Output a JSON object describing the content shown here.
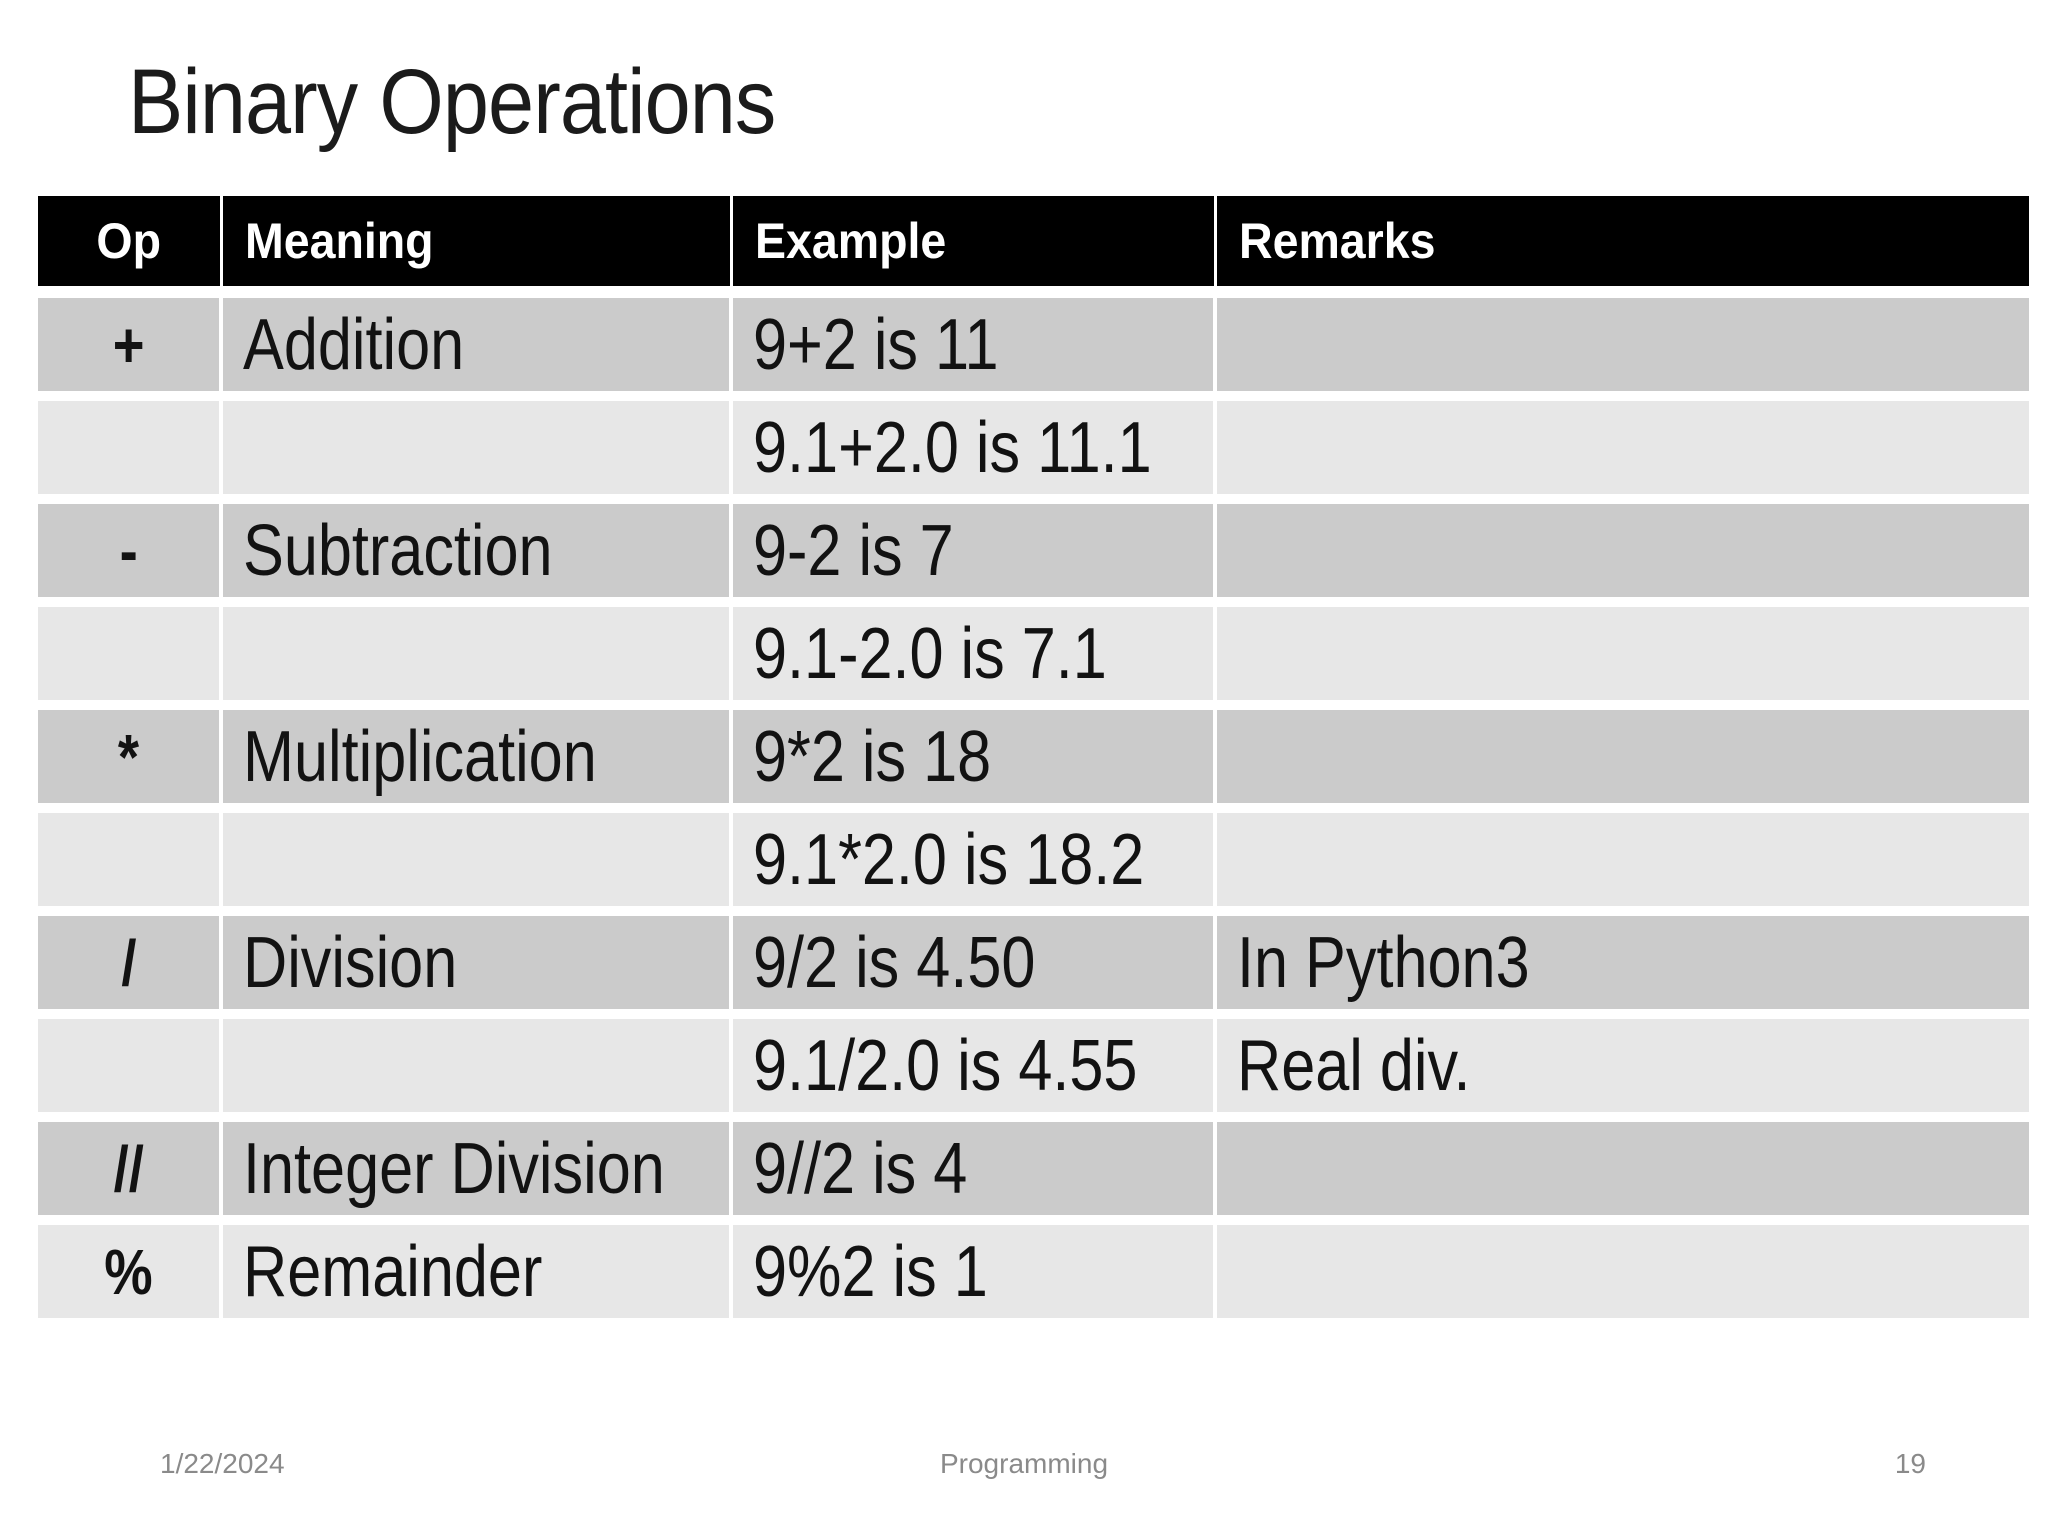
{
  "slide": {
    "title": "Binary Operations",
    "footer": {
      "date": "1/22/2024",
      "section": "Programming",
      "page_number": "19"
    }
  },
  "table": {
    "columns": [
      "Op",
      "Meaning",
      "Example",
      "Remarks"
    ],
    "rows": [
      {
        "op": "+",
        "meaning": "Addition",
        "example": "9+2 is 11",
        "remarks": ""
      },
      {
        "op": "",
        "meaning": "",
        "example": "9.1+2.0 is 11.1",
        "remarks": ""
      },
      {
        "op": "-",
        "meaning": "Subtraction",
        "example": "9-2 is 7",
        "remarks": ""
      },
      {
        "op": "",
        "meaning": "",
        "example": "9.1-2.0 is 7.1",
        "remarks": ""
      },
      {
        "op": "*",
        "meaning": "Multiplication",
        "example": "9*2 is 18",
        "remarks": ""
      },
      {
        "op": "",
        "meaning": "",
        "example": "9.1*2.0 is 18.2",
        "remarks": ""
      },
      {
        "op": "/",
        "meaning": "Division",
        "example": "9/2 is 4.50",
        "remarks": "In Python3"
      },
      {
        "op": "",
        "meaning": "",
        "example": "9.1/2.0 is 4.55",
        "remarks": "Real div."
      },
      {
        "op": "//",
        "meaning": "Integer Division",
        "example": "9//2 is 4",
        "remarks": ""
      },
      {
        "op": "%",
        "meaning": "Remainder",
        "example": "9%2 is 1",
        "remarks": ""
      }
    ]
  },
  "colors": {
    "header_bg": "#000000",
    "header_text": "#ffffff",
    "row_dark": "#cbcbcb",
    "row_light": "#e7e7e7",
    "title_text": "#1b1b1b",
    "footer_text": "#8a8a8a",
    "background": "#ffffff"
  }
}
